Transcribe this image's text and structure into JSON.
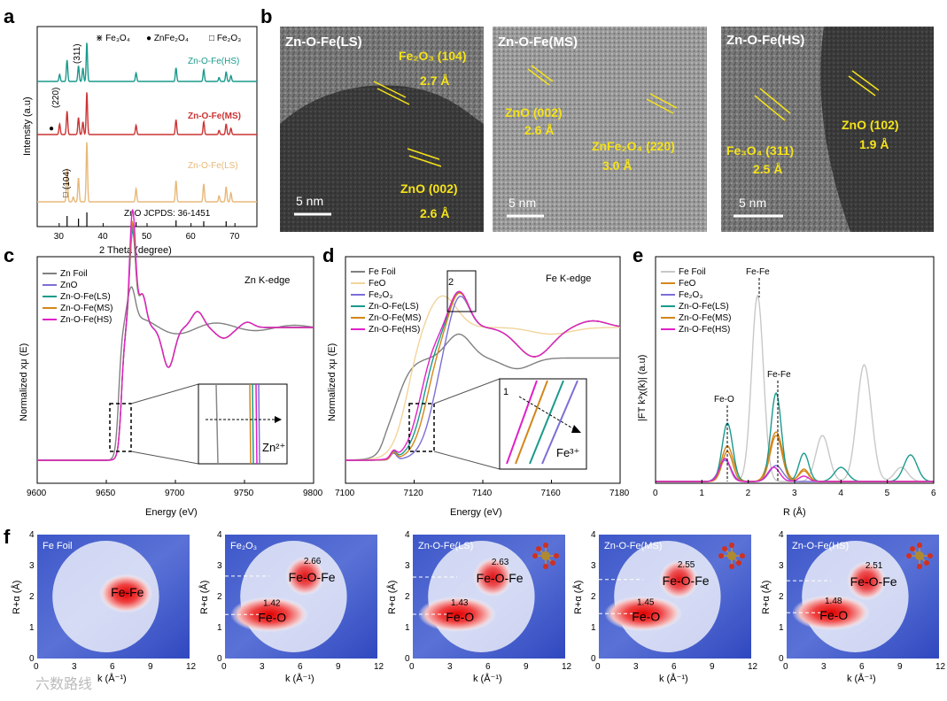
{
  "panels": {
    "a": "a",
    "b": "b",
    "c": "c",
    "d": "d",
    "e": "e",
    "f": "f"
  },
  "colors": {
    "grey": "#808080",
    "light": "#f2d49b",
    "blue": "#7b6fd6",
    "teal": "#1a9a8c",
    "orange": "#d4861a",
    "magenta": "#e020c8",
    "red": "#d93a3a",
    "hs": "#1a9a8c",
    "ms": "#cc3333",
    "ls": "#e8b878",
    "yellow": "#f5e21a"
  },
  "xrd": {
    "legend": [
      "Fe3O4",
      "ZnFe2O4",
      "Fe2O3"
    ],
    "legend_text": [
      "Fe₃O₄",
      "ZnFe₂O₄",
      "Fe₂O₃"
    ],
    "legend_markers": [
      "⋇",
      "●",
      "□"
    ],
    "series": [
      "Zn-O-Fe(HS)",
      "Zn-O-Fe(MS)",
      "Zn-O-Fe(LS)"
    ],
    "ref": "ZnO    JCPDS: 36-1451",
    "xlabel": "2 Theta (degree)",
    "ylabel": "Intensity (a.u)",
    "xticks": [
      "30",
      "40",
      "50",
      "60",
      "70"
    ],
    "ann": {
      "p311": "(311)",
      "p220": "(220)",
      "p104": "(104)"
    }
  },
  "tem": [
    {
      "title": "Zn-O-Fe(LS)",
      "ann": [
        "Fe₂O₃ (104)",
        "2.7 Å",
        "ZnO (002)",
        "2.6 Å"
      ],
      "scale": "5 nm"
    },
    {
      "title": "Zn-O-Fe(MS)",
      "ann": [
        "ZnO (002)",
        "2.6 Å",
        "ZnFe₂O₄ (220)",
        "3.0 Å"
      ],
      "scale": "5 nm"
    },
    {
      "title": "Zn-O-Fe(HS)",
      "ann": [
        "Fe₃O₄ (311)",
        "2.5 Å",
        "ZnO (102)",
        "1.9 Å"
      ],
      "scale": "5 nm"
    }
  ],
  "chart_data": [
    {
      "panel": "c",
      "type": "line",
      "title": "Zn K-edge",
      "xlabel": "Energy (eV)",
      "ylabel": "Normalized xμ (E)",
      "xlim": [
        9600,
        9800
      ],
      "xticks": [
        "9600",
        "9650",
        "9700",
        "9750",
        "9800"
      ],
      "series": [
        {
          "name": "Zn Foil"
        },
        {
          "name": "ZnO"
        },
        {
          "name": "Zn-O-Fe(LS)"
        },
        {
          "name": "Zn-O-Fe(MS)"
        },
        {
          "name": "Zn-O-Fe(HS)"
        }
      ],
      "inset_label": "Zn²⁺"
    },
    {
      "panel": "d",
      "type": "line",
      "title": "Fe K-edge",
      "xlabel": "Energy (eV)",
      "ylabel": "Normalized xμ (E)",
      "xlim": [
        7100,
        7180
      ],
      "xticks": [
        "7100",
        "7120",
        "7140",
        "7160",
        "7180"
      ],
      "series": [
        {
          "name": "Fe Foil"
        },
        {
          "name": "FeO"
        },
        {
          "name": "Fe₂O₃"
        },
        {
          "name": "Zn-O-Fe(LS)"
        },
        {
          "name": "Zn-O-Fe(MS)"
        },
        {
          "name": "Zn-O-Fe(HS)"
        }
      ],
      "inset_label": "Fe³⁺",
      "marks": [
        "1",
        "2"
      ]
    },
    {
      "panel": "e",
      "type": "line",
      "xlabel": "R (Å)",
      "ylabel": "|FT k³χ(k)| (a.u)",
      "xlim": [
        0,
        6
      ],
      "xticks": [
        "0",
        "1",
        "2",
        "3",
        "4",
        "5",
        "6"
      ],
      "series": [
        {
          "name": "Fe Foil"
        },
        {
          "name": "FeO"
        },
        {
          "name": "Fe₂O₃"
        },
        {
          "name": "Zn-O-Fe(LS)"
        },
        {
          "name": "Zn-O-Fe(MS)"
        },
        {
          "name": "Zn-O-Fe(HS)"
        }
      ],
      "peaks": [
        {
          "label": "Fe-Fe",
          "x": 2.2
        },
        {
          "label": "Fe-O",
          "x": 1.55
        },
        {
          "label": "Fe-Fe",
          "x": 2.6
        }
      ]
    },
    {
      "panel": "f",
      "type": "heatmap",
      "xlabel": "k (Å⁻¹)",
      "ylabel": "R+α (Å)",
      "xlim": [
        0,
        12
      ],
      "ylim": [
        0,
        4
      ],
      "xticks": [
        "0",
        "3",
        "6",
        "9",
        "12"
      ],
      "yticks": [
        "0",
        "1",
        "2",
        "3",
        "4"
      ],
      "maps": [
        {
          "title": "Fe Foil",
          "labels": [
            "Fe-Fe"
          ],
          "values": []
        },
        {
          "title": "Fe₂O₃",
          "labels": [
            "Fe-O-Fe",
            "Fe-O"
          ],
          "values": [
            "2.66",
            "1.42"
          ]
        },
        {
          "title": "Zn-O-Fe(LS)",
          "labels": [
            "Fe-O-Fe",
            "Fe-O"
          ],
          "values": [
            "2.63",
            "1.43"
          ]
        },
        {
          "title": "Zn-O-Fe(MS)",
          "labels": [
            "Fe-O-Fe",
            "Fe-O"
          ],
          "values": [
            "2.55",
            "1.45"
          ]
        },
        {
          "title": "Zn-O-Fe(HS)",
          "labels": [
            "Fe-O-Fe",
            "Fe-O"
          ],
          "values": [
            "2.51",
            "1.48"
          ]
        }
      ]
    }
  ],
  "watermark": "六数路线"
}
